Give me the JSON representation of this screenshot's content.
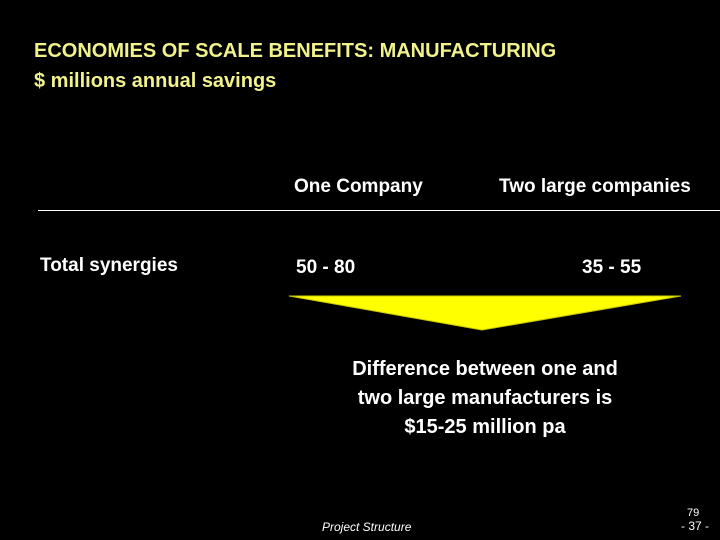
{
  "slide": {
    "title": "ECONOMIES OF SCALE BENEFITS: MANUFACTURING",
    "subtitle": "$ millions annual savings",
    "columns": [
      "One Company",
      "Two large companies"
    ],
    "row": {
      "label": "Total synergies",
      "values": [
        "50 - 80",
        "35 - 55"
      ]
    },
    "conclusion": [
      "Difference between one and",
      "two large manufacturers is",
      "$15-25 million pa"
    ],
    "footer": {
      "section": "Project Structure",
      "page_number_top": "79",
      "page_number": "- 37 -"
    }
  },
  "colors": {
    "background": "#000000",
    "title": "#F2F28C",
    "text": "#FFFFFF",
    "arrow": "#FFFF00"
  }
}
